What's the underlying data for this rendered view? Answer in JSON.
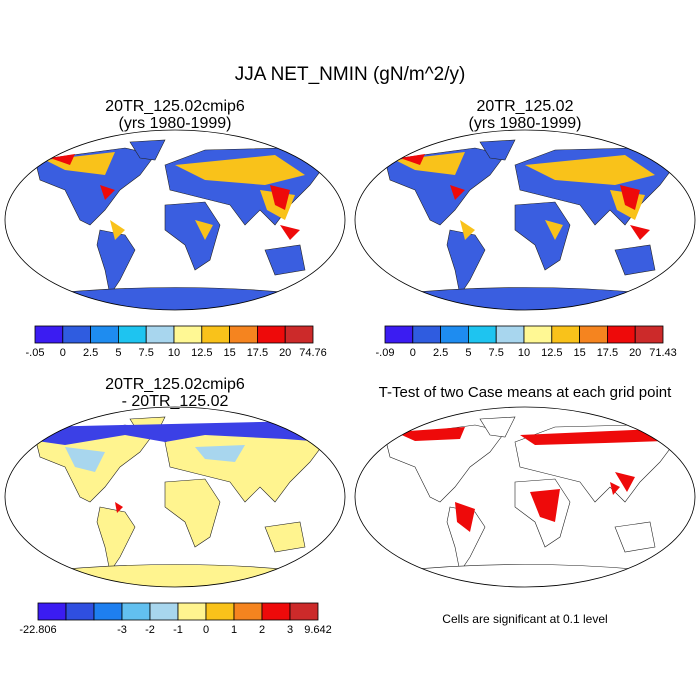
{
  "title": "JJA NET_NMIN (gN/m^2/y)",
  "panels": [
    {
      "title": [
        "20TR_125.02cmip6",
        "(yrs 1980-1999)"
      ],
      "colorbar": {
        "colors": [
          "#3b1cf2",
          "#2f5ce0",
          "#1e8cf0",
          "#1ec4f0",
          "#a8d6ee",
          "#fff894",
          "#f9c21a",
          "#f5841f",
          "#ee0a0a",
          "#cc2a2a"
        ],
        "labels": [
          "-.05",
          "0",
          "2.5",
          "5",
          "7.5",
          "10",
          "12.5",
          "15",
          "17.5",
          "20",
          "74.76"
        ]
      }
    },
    {
      "title": [
        "20TR_125.02",
        "(yrs 1980-1999)"
      ],
      "colorbar": {
        "colors": [
          "#3b1cf2",
          "#2f5ce0",
          "#1e8cf0",
          "#1ec4f0",
          "#a8d6ee",
          "#fff894",
          "#f9c21a",
          "#f5841f",
          "#ee0a0a",
          "#cc2a2a"
        ],
        "labels": [
          "-.09",
          "0",
          "2.5",
          "5",
          "7.5",
          "10",
          "12.5",
          "15",
          "17.5",
          "20",
          "71.43"
        ]
      }
    },
    {
      "title": [
        "20TR_125.02cmip6",
        "- 20TR_125.02"
      ],
      "colorbar": {
        "colors": [
          "#3b1cf2",
          "#2f4fe0",
          "#1e7ff0",
          "#62c0f0",
          "#a8d6ee",
          "#fff48f",
          "#f9c21a",
          "#f5841f",
          "#ee0a0a",
          "#cc2a2a"
        ],
        "labels": [
          "-22.806",
          null,
          null,
          "-3",
          "-2",
          "-1",
          "0",
          "1",
          "2",
          "3",
          "9.642"
        ]
      }
    },
    {
      "title": [
        "T-Test of two Case means at each grid point"
      ],
      "note": "Cells are significant at 0.1 level"
    }
  ]
}
